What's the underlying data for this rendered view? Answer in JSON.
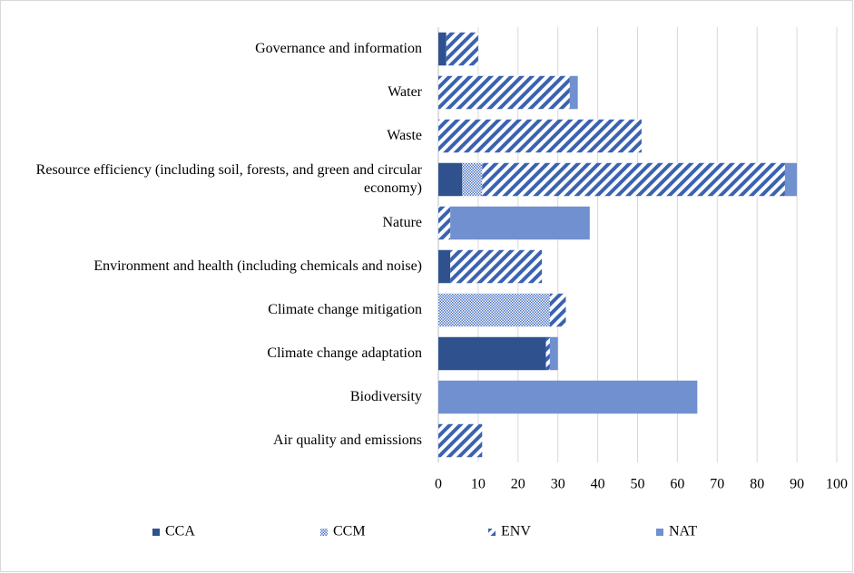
{
  "chart_data": {
    "type": "stacked_barh",
    "categories": [
      "Governance and information",
      "Water",
      "Waste",
      "Resource efficiency (including soil, forests, and green and circular economy)",
      "Nature",
      "Environment and health (including chemicals and noise)",
      "Climate change mitigation",
      "Climate change adaptation",
      "Biodiversity",
      "Air quality and emissions"
    ],
    "series": [
      {
        "name": "CCA",
        "color": "#2f528f",
        "pattern": "solid",
        "values": [
          2,
          0,
          0,
          6,
          0,
          3,
          0,
          27,
          0,
          0
        ]
      },
      {
        "name": "CCM",
        "color": "#4a72c0",
        "pattern": "dots",
        "values": [
          0,
          0,
          0,
          5,
          0,
          0,
          28,
          0,
          0,
          0
        ]
      },
      {
        "name": "ENV",
        "color": "#3a62b0",
        "pattern": "stripes",
        "values": [
          8,
          33,
          51,
          76,
          3,
          23,
          4,
          1,
          0,
          11
        ]
      },
      {
        "name": "NAT",
        "color": "#7090cf",
        "pattern": "solid",
        "values": [
          0,
          2,
          0,
          3,
          35,
          0,
          0,
          2,
          65,
          0
        ]
      }
    ],
    "xlim": [
      0,
      100
    ],
    "xticks": [
      0,
      10,
      20,
      30,
      40,
      50,
      60,
      70,
      80,
      90,
      100
    ],
    "grid": true,
    "legend": "bottom"
  }
}
